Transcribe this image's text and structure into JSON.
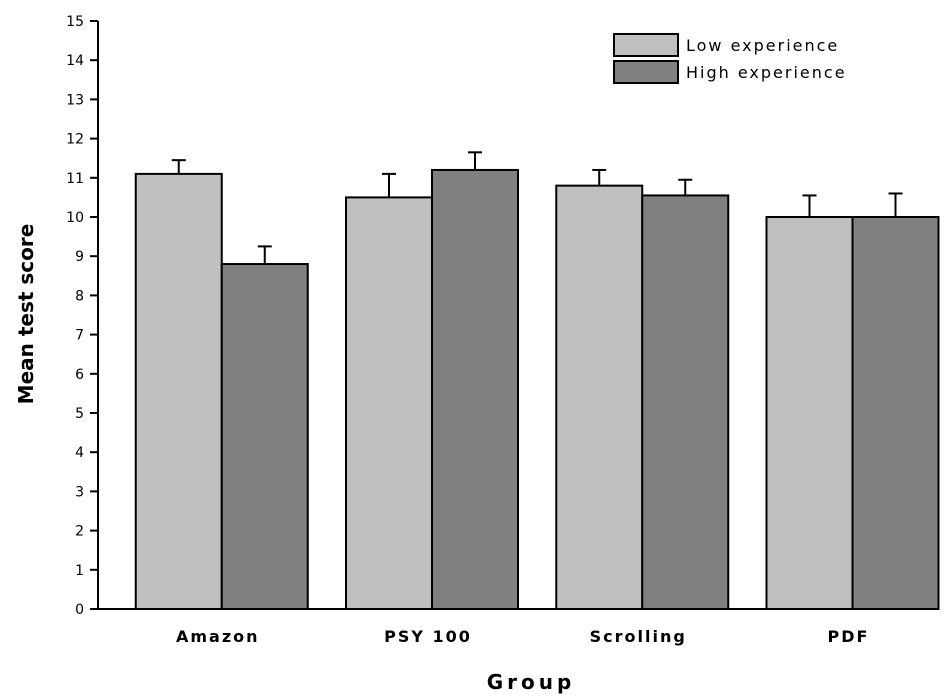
{
  "chart_data": {
    "type": "bar",
    "xlabel": "Group",
    "ylabel": "Mean test score",
    "ylim": [
      0,
      15
    ],
    "yticks": [
      0,
      1,
      2,
      3,
      4,
      5,
      6,
      7,
      8,
      9,
      10,
      11,
      12,
      13,
      14,
      15
    ],
    "categories": [
      "Amazon",
      "PSY 100",
      "Scrolling",
      "PDF"
    ],
    "series": [
      {
        "name": "Low experience",
        "values": [
          11.1,
          10.5,
          10.8,
          10.0
        ],
        "errors": [
          0.35,
          0.6,
          0.4,
          0.55
        ],
        "color": "#c0c0c0"
      },
      {
        "name": "High experience",
        "values": [
          8.8,
          11.2,
          10.55,
          10.0
        ],
        "errors": [
          0.45,
          0.45,
          0.4,
          0.6
        ],
        "color": "#808080"
      }
    ],
    "legend_position": "top-right",
    "grid": false
  }
}
